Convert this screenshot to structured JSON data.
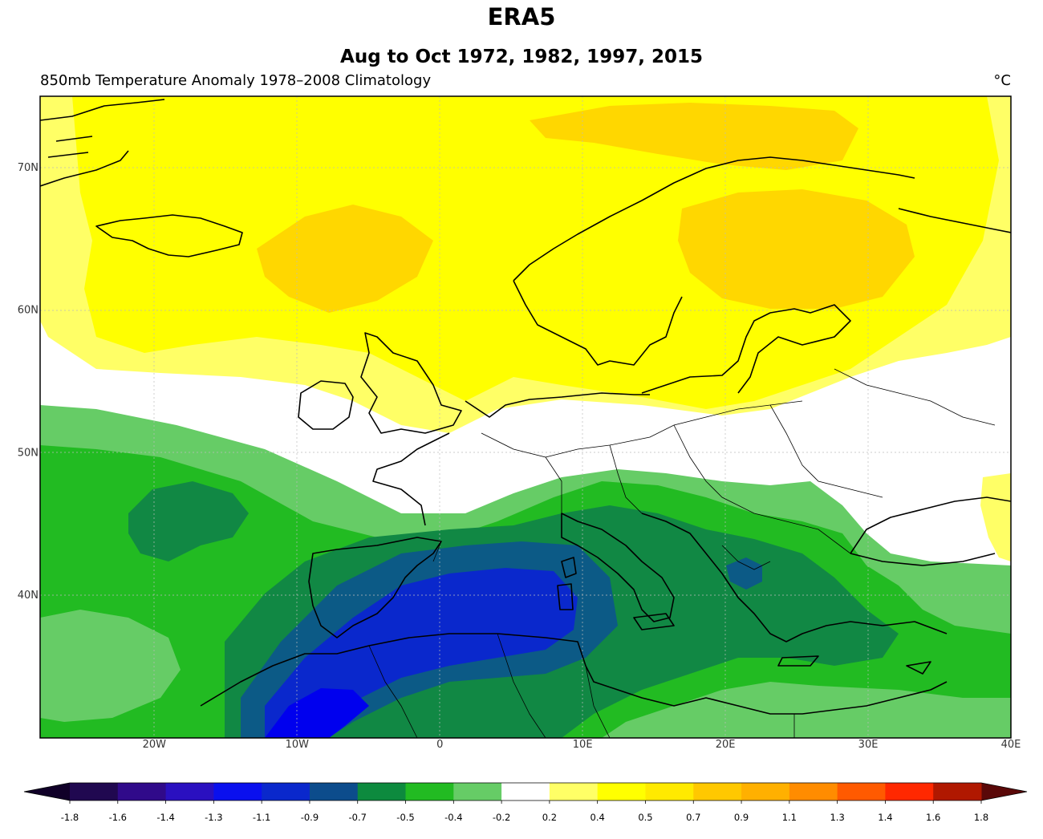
{
  "header": {
    "title": "ERA5",
    "subtitle": "Aug to Oct 1972, 1982, 1997, 2015",
    "left_label": "850mb Temperature Anomaly  1978–2008 Climatology",
    "units": "°C"
  },
  "map": {
    "lon_range": [
      -28,
      40
    ],
    "lat_range": [
      30,
      75
    ],
    "lon_ticks": [
      {
        "value": -20,
        "label": "20W"
      },
      {
        "value": -10,
        "label": "10W"
      },
      {
        "value": 0,
        "label": "0"
      },
      {
        "value": 10,
        "label": "10E"
      },
      {
        "value": 20,
        "label": "20E"
      },
      {
        "value": 30,
        "label": "30E"
      },
      {
        "value": 40,
        "label": "40E"
      }
    ],
    "lat_ticks": [
      {
        "value": 70,
        "label": "70N"
      },
      {
        "value": 60,
        "label": "60N"
      },
      {
        "value": 50,
        "label": "50N"
      },
      {
        "value": 40,
        "label": "40N"
      }
    ],
    "gridlines": true,
    "colors": {
      "warm_light": "#ffff66",
      "warm": "#ffff00",
      "warm_strong": "#ffd700",
      "neutral": "#ffffff",
      "cool_light": "#66cc66",
      "cool": "#22bb22",
      "cool_strong": "#118844",
      "cold_teal": "#0c5a86",
      "cold": "#0a28cc",
      "cold_strong": "#0000ee",
      "coast": "#000000"
    }
  },
  "colorbar": {
    "labels": [
      "-1.8",
      "-1.6",
      "-1.4",
      "-1.3",
      "-1.1",
      "-0.9",
      "-0.7",
      "-0.5",
      "-0.4",
      "-0.2",
      "0.2",
      "0.4",
      "0.5",
      "0.7",
      "0.9",
      "1.1",
      "1.3",
      "1.4",
      "1.6",
      "1.8"
    ],
    "colors": [
      "#200850",
      "#300a8a",
      "#2a10c0",
      "#0a10ee",
      "#0a28cc",
      "#0c4c8c",
      "#0d8a3e",
      "#22bb22",
      "#66cc66",
      "#ffffff",
      "#ffff66",
      "#ffff00",
      "#ffea00",
      "#ffc800",
      "#ffb000",
      "#ff8c00",
      "#ff5a00",
      "#ff2800",
      "#b01800"
    ],
    "extend_min_color": "#100028",
    "extend_max_color": "#5a0808"
  }
}
